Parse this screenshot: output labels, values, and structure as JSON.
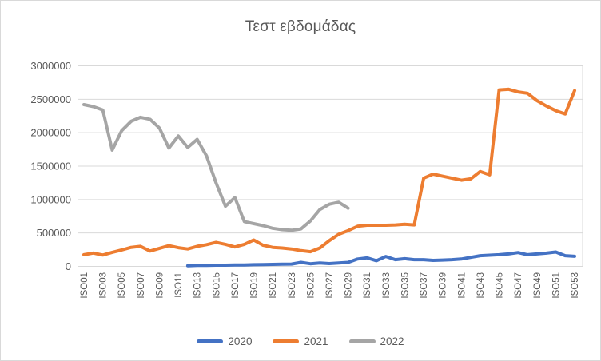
{
  "chart_data": {
    "type": "line",
    "title": "Τεστ εβδομάδας",
    "weeks_total": 53,
    "x_axis": {
      "tick_labels": [
        "ISO01",
        "ISO03",
        "ISO05",
        "ISO07",
        "ISO09",
        "ISO11",
        "ISO13",
        "ISO15",
        "ISO17",
        "ISO19",
        "ISO21",
        "ISO23",
        "ISO25",
        "ISO27",
        "ISO29",
        "ISO31",
        "ISO33",
        "ISO35",
        "ISO37",
        "ISO39",
        "ISO41",
        "ISO43",
        "ISO45",
        "ISO47",
        "ISO49",
        "ISO51",
        "ISO53"
      ],
      "label_rotation_deg": -90
    },
    "y_axis": {
      "min": 0,
      "max": 3000000,
      "ticks": [
        0,
        500000,
        1000000,
        1500000,
        2000000,
        2500000,
        3000000
      ]
    },
    "grid": "horizontal",
    "legend_position": "bottom",
    "colors": {
      "gridline": "#d9d9d9",
      "axis_text": "#595959",
      "title_text": "#595959"
    },
    "series": [
      {
        "name": "2020",
        "color": "#4472C4",
        "values": [
          null,
          null,
          null,
          null,
          null,
          null,
          null,
          null,
          null,
          null,
          null,
          10000,
          15000,
          15000,
          18000,
          18000,
          20000,
          22000,
          25000,
          28000,
          30000,
          32000,
          35000,
          60000,
          40000,
          50000,
          42000,
          50000,
          60000,
          110000,
          128000,
          85000,
          148000,
          100000,
          115000,
          100000,
          100000,
          90000,
          95000,
          100000,
          110000,
          135000,
          160000,
          167000,
          175000,
          187000,
          207000,
          175000,
          187000,
          199000,
          215000,
          160000,
          150000
        ]
      },
      {
        "name": "2021",
        "color": "#ED7D31",
        "values": [
          175000,
          200000,
          170000,
          210000,
          245000,
          285000,
          300000,
          230000,
          270000,
          310000,
          280000,
          260000,
          300000,
          325000,
          360000,
          330000,
          290000,
          330000,
          395000,
          315000,
          285000,
          275000,
          260000,
          235000,
          220000,
          275000,
          385000,
          480000,
          535000,
          600000,
          615000,
          615000,
          615000,
          620000,
          630000,
          620000,
          1320000,
          1380000,
          1350000,
          1320000,
          1290000,
          1310000,
          1420000,
          1370000,
          2640000,
          2650000,
          2610000,
          2590000,
          2480000,
          2400000,
          2330000,
          2280000,
          2630000
        ]
      },
      {
        "name": "2022",
        "color": "#A5A5A5",
        "values": [
          2420000,
          2390000,
          2340000,
          1740000,
          2030000,
          2170000,
          2230000,
          2200000,
          2070000,
          1770000,
          1950000,
          1780000,
          1900000,
          1650000,
          1250000,
          900000,
          1030000,
          670000,
          640000,
          610000,
          570000,
          550000,
          540000,
          560000,
          680000,
          850000,
          930000,
          960000,
          870000,
          null,
          null,
          null,
          null,
          null,
          null,
          null,
          null,
          null,
          null,
          null,
          null,
          null,
          null,
          null,
          null,
          null,
          null,
          null,
          null,
          null,
          null,
          null,
          null
        ]
      }
    ]
  }
}
